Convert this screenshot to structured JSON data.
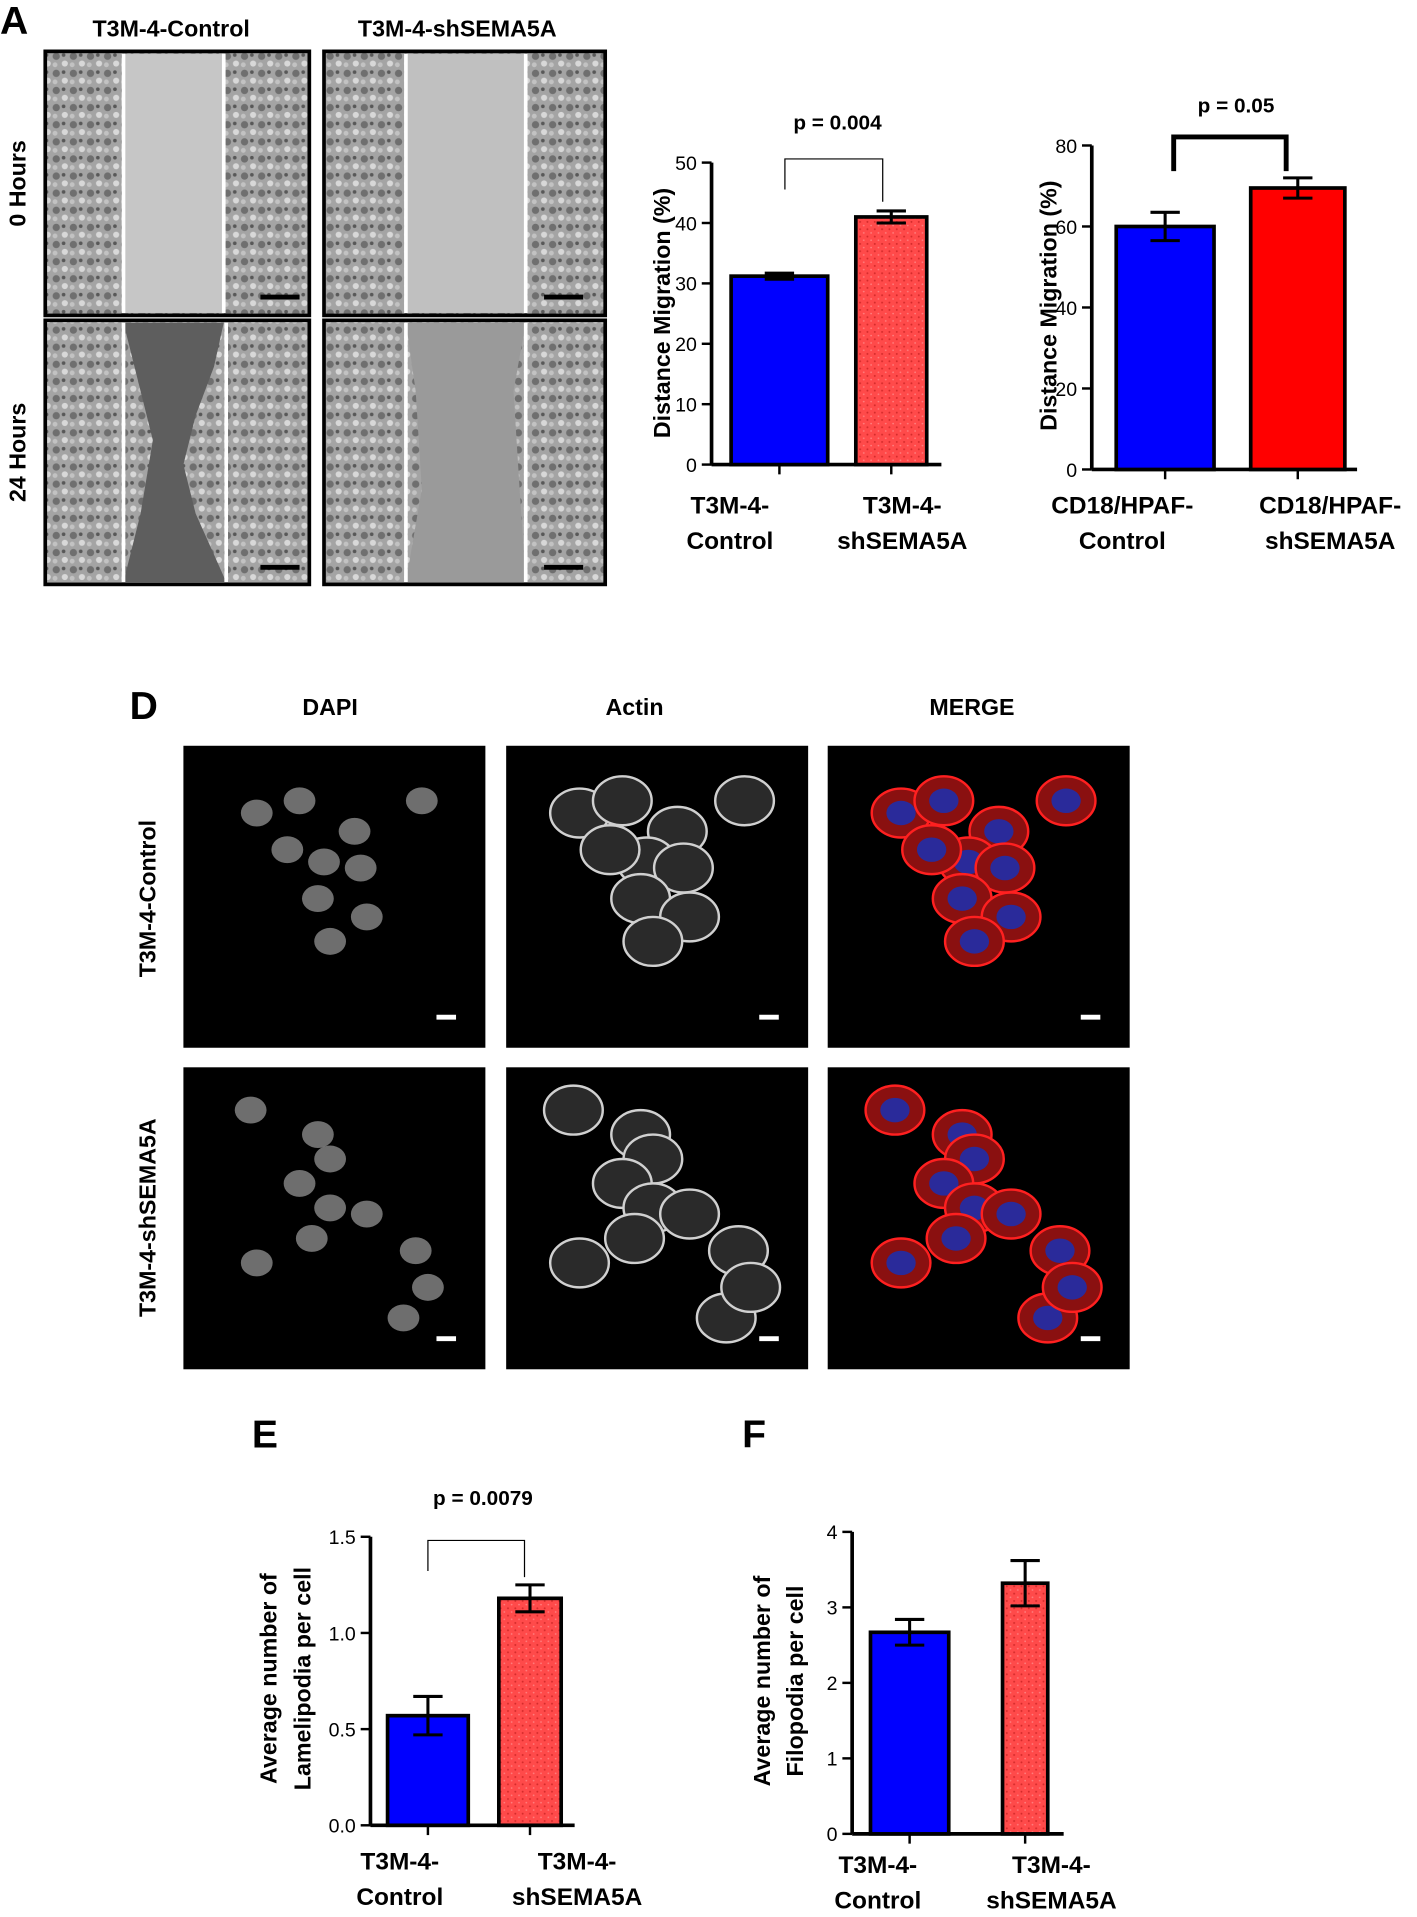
{
  "figure": {
    "letters": [
      "A",
      "D",
      "E",
      "F"
    ],
    "panel_a": {
      "columns": [
        "T3M-4-Control",
        "T3M-4-shSEMA5A"
      ],
      "rows": [
        "0 Hours",
        "24 Hours"
      ]
    },
    "panel_d": {
      "columns": [
        "DAPI",
        "Actin",
        "MERGE"
      ],
      "rows": [
        "T3M-4-Control",
        "T3M-4-shSEMA5A"
      ]
    }
  },
  "chart_data": [
    {
      "type": "bar",
      "ylabel": [
        "Distance Migration (%)"
      ],
      "categories": [
        [
          "T3M-4-",
          "Control"
        ],
        [
          "T3M-4-",
          "shSEMA5A"
        ]
      ],
      "values": [
        31.2,
        41.0
      ],
      "errors": [
        0.5,
        1.0
      ],
      "colors": [
        "#0000ff",
        "#ff4a4a"
      ],
      "ylim": [
        0,
        50
      ],
      "yticks": [
        0,
        10,
        20,
        30,
        40,
        50
      ],
      "annotation": "p = 0.004"
    },
    {
      "type": "bar",
      "ylabel": [
        "Distance Migration (%)"
      ],
      "categories": [
        [
          "CD18/HPAF-",
          "Control"
        ],
        [
          "CD18/HPAF-",
          "shSEMA5A"
        ]
      ],
      "values": [
        60,
        69.5
      ],
      "errors": [
        3.5,
        2.5
      ],
      "colors": [
        "#0000ff",
        "#ff0000"
      ],
      "ylim": [
        0,
        80
      ],
      "yticks": [
        0,
        20,
        40,
        60,
        80
      ],
      "annotation": "p = 0.05"
    },
    {
      "type": "bar",
      "ylabel": [
        "Average number of",
        "Lamelipodia per cell"
      ],
      "categories": [
        [
          "T3M-4-",
          "Control"
        ],
        [
          "T3M-4-",
          "shSEMA5A"
        ]
      ],
      "values": [
        0.57,
        1.18
      ],
      "errors": [
        0.1,
        0.07
      ],
      "colors": [
        "#0000ff",
        "#ff4a4a"
      ],
      "ylim": [
        0,
        1.5
      ],
      "yticks": [
        {
          "value": 0,
          "label": "0.0"
        },
        0.5,
        {
          "value": 1,
          "label": "1.0"
        },
        1.5
      ],
      "annotation": "p = 0.0079"
    },
    {
      "type": "bar",
      "ylabel": [
        "Average number of",
        "Filopodia per cell"
      ],
      "categories": [
        [
          "T3M-4-",
          "Control"
        ],
        [
          "T3M-4-",
          "shSEMA5A"
        ]
      ],
      "values": [
        2.67,
        3.32
      ],
      "errors": [
        0.17,
        0.3
      ],
      "colors": [
        "#0000ff",
        "#ff4a4a"
      ],
      "ylim": [
        0,
        4
      ],
      "yticks": [
        0,
        1,
        2,
        3,
        4
      ]
    }
  ]
}
